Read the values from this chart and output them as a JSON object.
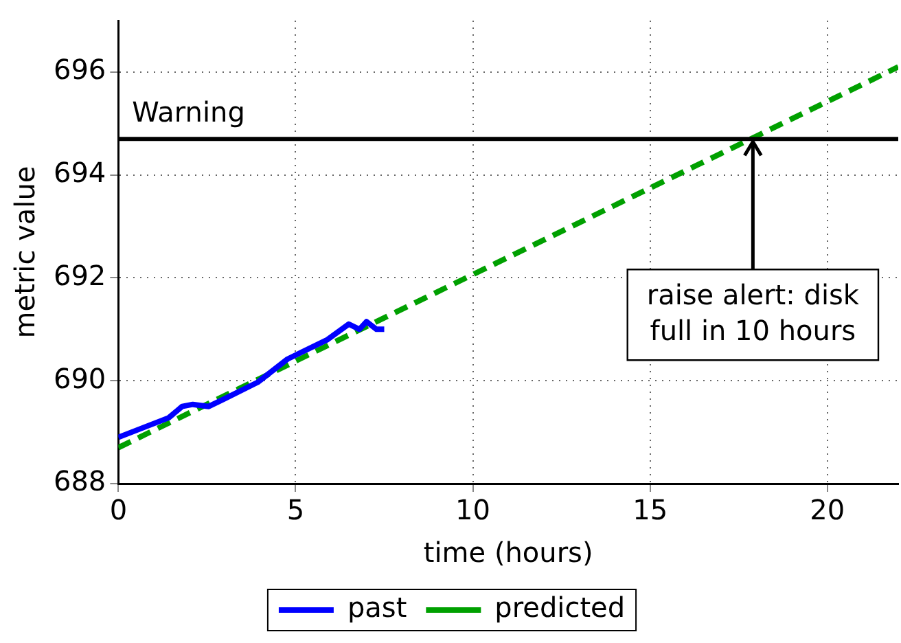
{
  "chart_data": {
    "type": "line",
    "xlabel": "time (hours)",
    "ylabel": "metric value",
    "xlim": [
      0,
      22
    ],
    "xticks": [
      0,
      5,
      10,
      15,
      20
    ],
    "ylim": [
      688,
      697
    ],
    "yticks": [
      688,
      690,
      692,
      694,
      696
    ],
    "grid": true,
    "legend": "bottom",
    "marker": "none",
    "series": [
      {
        "name": "past",
        "color": "#0000ff",
        "line_style": "solid",
        "x": [
          0,
          1.42,
          1.8,
          2.1,
          2.55,
          3.0,
          3.93,
          4.77,
          5.9,
          6.5,
          6.8,
          7.0,
          7.28,
          7.5
        ],
        "values": [
          688.9,
          689.28,
          689.5,
          689.54,
          689.5,
          689.65,
          689.97,
          690.42,
          690.8,
          691.1,
          691.0,
          691.15,
          691.0,
          691.0
        ]
      },
      {
        "name": "predicted",
        "color": "#00a000",
        "line_style": "dashed",
        "x": [
          0,
          22
        ],
        "values": [
          688.7,
          696.1
        ]
      }
    ],
    "ref_lines": [
      {
        "axis": "y",
        "value": 694.7,
        "label": "Warning",
        "color": "#000000"
      }
    ],
    "annotations": [
      {
        "text": "raise alert: disk\nfull in 10 hours",
        "x": 17.9,
        "y": 694.7
      }
    ]
  }
}
